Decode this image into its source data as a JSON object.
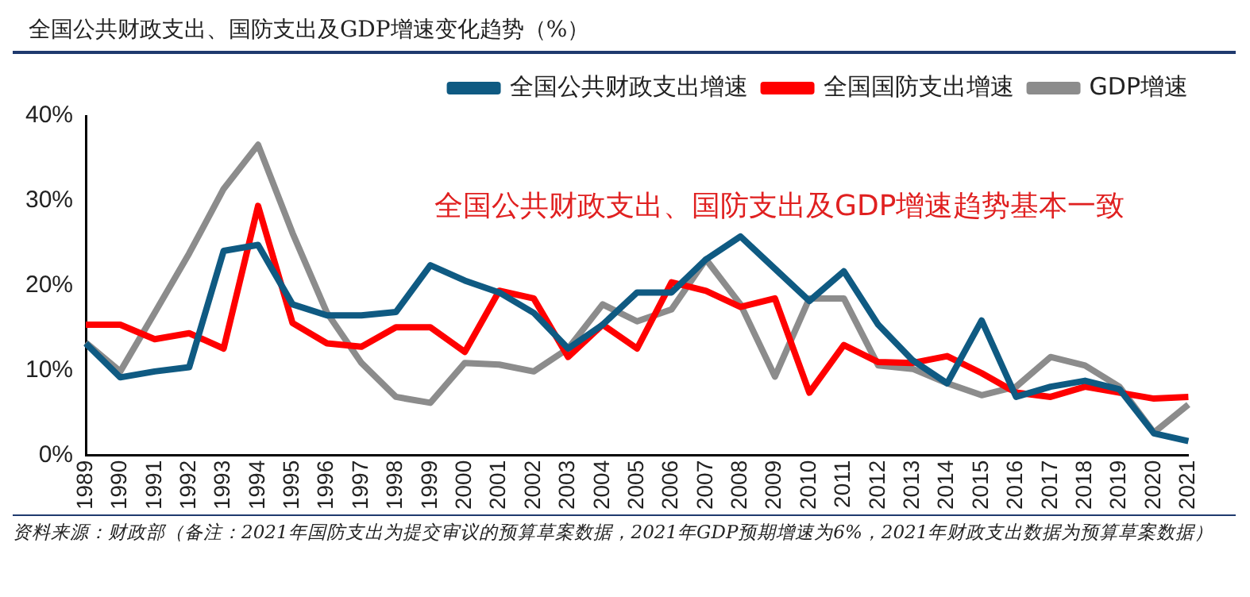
{
  "chart_data": {
    "type": "line",
    "title": "全国公共财政支出、国防支出及GDP增速变化趋势（%）",
    "categories": [
      "1989",
      "1990",
      "1991",
      "1992",
      "1993",
      "1994",
      "1995",
      "1996",
      "1997",
      "1998",
      "1999",
      "2000",
      "2001",
      "2002",
      "2003",
      "2004",
      "2005",
      "2006",
      "2007",
      "2008",
      "2009",
      "2010",
      "2011",
      "2012",
      "2013",
      "2014",
      "2015",
      "2016",
      "2017",
      "2018",
      "2019",
      "2020",
      "2021"
    ],
    "series": [
      {
        "name": "全国公共财政支出增速",
        "color": "#0f5a82",
        "values": [
          13.2,
          9.2,
          9.9,
          10.4,
          24.1,
          24.8,
          17.8,
          16.5,
          16.5,
          16.9,
          22.4,
          20.6,
          19.2,
          16.8,
          12.6,
          15.4,
          19.2,
          19.2,
          23.1,
          25.8,
          22.0,
          18.2,
          21.7,
          15.4,
          11.2,
          8.5,
          15.9,
          6.9,
          8.1,
          8.8,
          7.8,
          2.6,
          1.7
        ]
      },
      {
        "name": "全国国防支出增速",
        "color": "#ff0000",
        "values": [
          15.4,
          15.4,
          13.7,
          14.4,
          12.6,
          29.4,
          15.6,
          13.2,
          12.8,
          15.1,
          15.1,
          12.2,
          19.4,
          18.5,
          11.6,
          15.4,
          12.6,
          20.4,
          19.4,
          17.5,
          18.5,
          7.4,
          13.0,
          11.0,
          10.9,
          11.7,
          9.7,
          7.4,
          6.9,
          8.1,
          7.4,
          6.7,
          6.9
        ]
      },
      {
        "name": "GDP增速",
        "color": "#8c8c8c",
        "values": [
          13.3,
          9.9,
          16.8,
          23.8,
          31.4,
          36.6,
          26.2,
          16.8,
          10.9,
          6.9,
          6.2,
          10.9,
          10.7,
          9.9,
          12.6,
          17.8,
          15.8,
          17.2,
          23.1,
          17.8,
          9.3,
          18.5,
          18.5,
          10.6,
          10.2,
          8.5,
          7.1,
          8.1,
          11.6,
          10.6,
          8.1,
          2.7,
          6.0
        ]
      }
    ],
    "ylim": [
      0,
      40
    ],
    "yticks": [
      {
        "value": 0,
        "label": "0%"
      },
      {
        "value": 10,
        "label": "10%"
      },
      {
        "value": 20,
        "label": "20%"
      },
      {
        "value": 30,
        "label": "30%"
      },
      {
        "value": 40,
        "label": "40%"
      }
    ],
    "grid": false,
    "legend": "top right",
    "marker": "none",
    "line_style": "solid",
    "annotations": [
      "全国公共财政支出、国防支出及GDP增速趋势基本一致",
      "资料来源：财政部（备注：2021年国防支出为提交审议的预算草案数据，2021年GDP预期增速为6%，2021年财政支出数据为预算草案数据）"
    ]
  }
}
